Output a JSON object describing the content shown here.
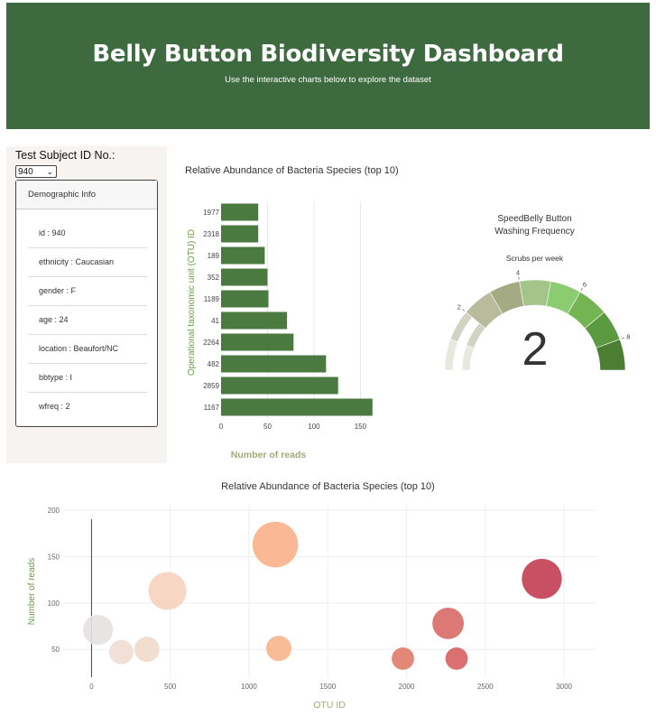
{
  "header": {
    "title": "Belly Button Biodiversity Dashboard",
    "subtitle": "Use the interactive charts below to explore the dataset"
  },
  "selector": {
    "label": "Test Subject ID No.:",
    "selected": "940"
  },
  "demographics": {
    "title": "Demographic Info",
    "items": [
      "id : 940",
      "ethnicity : Caucasian",
      "gender : F",
      "age : 24",
      "location : Beaufort/NC",
      "bbtype : I",
      "wfreq : 2"
    ]
  },
  "colors": {
    "header_bg": "#3e6a40",
    "bar_fill": "#4a7a40",
    "axis_title": "#a0a87a",
    "ylabel_color": "#6a9a4a"
  },
  "chart_data": [
    {
      "type": "bar",
      "orientation": "horizontal",
      "title": "Relative Abundance of Bacteria Species (top 10)",
      "xlabel": "Number of reads",
      "ylabel": "Operational taxonomic unit (OTU) ID",
      "categories": [
        "1977",
        "2318",
        "189",
        "352",
        "1189",
        "41",
        "2264",
        "482",
        "2859",
        "1167"
      ],
      "values": [
        40,
        40,
        47,
        50,
        51,
        71,
        78,
        113,
        126,
        163
      ],
      "xlim": [
        0,
        170
      ],
      "xticks": [
        0,
        50,
        100,
        150
      ],
      "grid": true
    },
    {
      "type": "gauge",
      "title_line1": "SpeedBelly Button",
      "title_line2": "Washing Frequency",
      "subtitle": "Scrubs per week",
      "value": 2,
      "value_label": "2",
      "range": [
        0,
        9
      ],
      "tick_labels": [
        "2",
        "4",
        "6",
        "8"
      ],
      "step_colors": [
        "#e8e8df",
        "#d2d3c2",
        "#b9bc9c",
        "#a4ab83",
        "#a3c58a",
        "#8ccc70",
        "#74b452",
        "#5c9a42",
        "#4a7e33"
      ]
    },
    {
      "type": "scatter",
      "title": "Relative Abundance of Bacteria Species (top 10)",
      "xlabel": "OTU ID",
      "ylabel": "Number of reads",
      "xlim": [
        -180,
        3200
      ],
      "ylim": [
        20,
        205
      ],
      "xticks": [
        0,
        500,
        1000,
        1500,
        2000,
        2500,
        3000
      ],
      "yticks": [
        50,
        100,
        150,
        200
      ],
      "points": [
        {
          "x": 41,
          "y": 71,
          "size": 71,
          "color": "#e6e1e1"
        },
        {
          "x": 189,
          "y": 47,
          "size": 47,
          "color": "#eeddd4"
        },
        {
          "x": 352,
          "y": 50,
          "size": 50,
          "color": "#f1dac9"
        },
        {
          "x": 482,
          "y": 113,
          "size": 113,
          "color": "#f6d3bc"
        },
        {
          "x": 1167,
          "y": 163,
          "size": 163,
          "color": "#f9b088"
        },
        {
          "x": 1189,
          "y": 51,
          "size": 51,
          "color": "#f7b58c"
        },
        {
          "x": 1977,
          "y": 40,
          "size": 40,
          "color": "#e07a68"
        },
        {
          "x": 2264,
          "y": 78,
          "size": 78,
          "color": "#d96a65"
        },
        {
          "x": 2318,
          "y": 40,
          "size": 40,
          "color": "#d66061"
        },
        {
          "x": 2859,
          "y": 126,
          "size": 126,
          "color": "#c33d52"
        }
      ]
    }
  ]
}
